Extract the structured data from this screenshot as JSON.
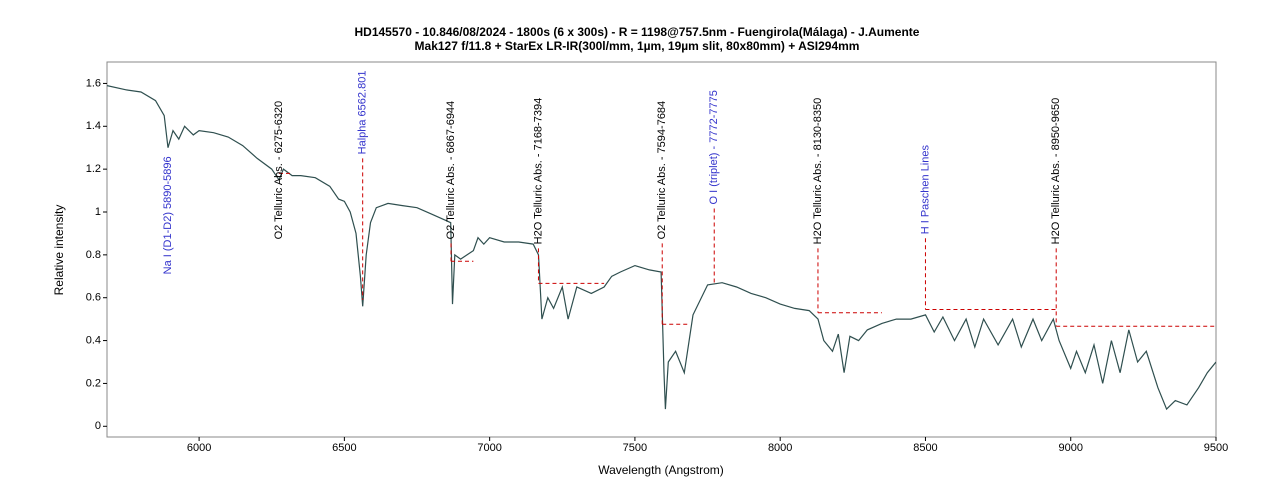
{
  "chart_data": {
    "type": "line",
    "title": "HD145570 - 10.846/08/2024 - 1800s (6 x 300s) - R = 1198@757.5nm - Fuengirola(Málaga) - J.Aumente",
    "subtitle": "Mak127 f/11.8 + StarEx LR-IR(300l/mm, 1µm, 19µm slit, 80x80mm) + ASI294mm",
    "x_label": "Wavelength (Angstrom)",
    "y_label": "Relative intensity",
    "xlim": [
      5683,
      9500
    ],
    "ylim": [
      -0.05,
      1.7
    ],
    "xticks": [
      6000,
      6500,
      7000,
      7500,
      8000,
      8500,
      9000,
      9500
    ],
    "yticks": [
      0,
      0.2,
      0.4,
      0.6,
      0.8,
      1,
      1.2,
      1.4,
      1.6
    ],
    "color": "#2f4f4f",
    "x": [
      5683,
      5750,
      5800,
      5850,
      5880,
      5893,
      5910,
      5930,
      5950,
      5980,
      6000,
      6050,
      6100,
      6150,
      6200,
      6250,
      6275,
      6290,
      6320,
      6350,
      6400,
      6450,
      6480,
      6500,
      6520,
      6540,
      6555,
      6563,
      6575,
      6590,
      6610,
      6650,
      6700,
      6750,
      6800,
      6850,
      6866,
      6872,
      6880,
      6900,
      6944,
      6960,
      6980,
      7000,
      7050,
      7100,
      7150,
      7168,
      7180,
      7200,
      7220,
      7250,
      7270,
      7300,
      7350,
      7394,
      7420,
      7450,
      7500,
      7550,
      7590,
      7600,
      7605,
      7615,
      7640,
      7670,
      7700,
      7750,
      7800,
      7850,
      7900,
      7950,
      8000,
      8050,
      8100,
      8130,
      8150,
      8180,
      8200,
      8220,
      8240,
      8270,
      8300,
      8350,
      8400,
      8450,
      8500,
      8530,
      8560,
      8600,
      8640,
      8670,
      8700,
      8750,
      8800,
      8830,
      8870,
      8900,
      8940,
      8960,
      9000,
      9020,
      9050,
      9080,
      9110,
      9140,
      9170,
      9200,
      9230,
      9260,
      9300,
      9330,
      9360,
      9400,
      9440,
      9470,
      9500
    ],
    "values": [
      1.59,
      1.57,
      1.56,
      1.52,
      1.45,
      1.3,
      1.38,
      1.34,
      1.4,
      1.36,
      1.38,
      1.37,
      1.35,
      1.31,
      1.25,
      1.2,
      1.15,
      1.2,
      1.17,
      1.17,
      1.16,
      1.12,
      1.06,
      1.05,
      1.0,
      0.9,
      0.7,
      0.56,
      0.8,
      0.95,
      1.02,
      1.04,
      1.03,
      1.02,
      0.99,
      0.96,
      0.95,
      0.57,
      0.8,
      0.78,
      0.82,
      0.88,
      0.85,
      0.88,
      0.86,
      0.86,
      0.85,
      0.8,
      0.5,
      0.6,
      0.55,
      0.65,
      0.5,
      0.65,
      0.62,
      0.65,
      0.7,
      0.72,
      0.75,
      0.73,
      0.72,
      0.25,
      0.08,
      0.3,
      0.35,
      0.25,
      0.52,
      0.66,
      0.67,
      0.65,
      0.62,
      0.6,
      0.57,
      0.55,
      0.54,
      0.5,
      0.4,
      0.35,
      0.43,
      0.25,
      0.42,
      0.4,
      0.45,
      0.48,
      0.5,
      0.5,
      0.52,
      0.44,
      0.51,
      0.4,
      0.5,
      0.37,
      0.5,
      0.38,
      0.5,
      0.37,
      0.5,
      0.4,
      0.5,
      0.4,
      0.27,
      0.35,
      0.25,
      0.38,
      0.2,
      0.4,
      0.25,
      0.45,
      0.3,
      0.35,
      0.18,
      0.08,
      0.12,
      0.1,
      0.18,
      0.25,
      0.3
    ],
    "annotations": [
      {
        "label": "Na I (D1-D2) 5890-5896",
        "x": 5893,
        "y": 0.709,
        "color": "#3333cc"
      },
      {
        "label": "O2 Telluric Abs. - 6275-6320",
        "x": 6275,
        "y": 0.872,
        "color": "#000000",
        "band": [
          6275,
          6320
        ],
        "level": 1.18
      },
      {
        "label": "Halpha 6562.801",
        "x": 6563,
        "y": 1.269,
        "color": "#3333cc",
        "level": 0.59
      },
      {
        "label": "O2 Telluric Abs. - 6867-6944",
        "x": 6867,
        "y": 0.872,
        "color": "#000000",
        "band": [
          6867,
          6944
        ],
        "level": 0.77
      },
      {
        "label": "H2O Telluric Abs. - 7168-7394",
        "x": 7168,
        "y": 0.849,
        "color": "#000000",
        "band": [
          7168,
          7394
        ],
        "level": 0.667
      },
      {
        "label": "O2 Telluric Abs. - 7594-7684",
        "x": 7594,
        "y": 0.872,
        "color": "#000000",
        "band": [
          7594,
          7684
        ],
        "level": 0.476
      },
      {
        "label": "O I (triplet) - 7772-7775",
        "x": 7773,
        "y": 1.035,
        "color": "#3333cc",
        "level": 0.662
      },
      {
        "label": "H2O Telluric Abs. - 8130-8350",
        "x": 8130,
        "y": 0.849,
        "color": "#000000",
        "band": [
          8130,
          8350
        ],
        "level": 0.53
      },
      {
        "label": "H I Paschen Lines",
        "x": 8500,
        "y": 0.896,
        "color": "#3333cc",
        "band": [
          8500,
          8950
        ],
        "level": 0.545
      },
      {
        "label": "H2O Telluric Abs. - 8950-9650",
        "x": 8950,
        "y": 0.849,
        "color": "#000000",
        "band": [
          8950,
          9650
        ],
        "level": 0.467
      }
    ]
  }
}
